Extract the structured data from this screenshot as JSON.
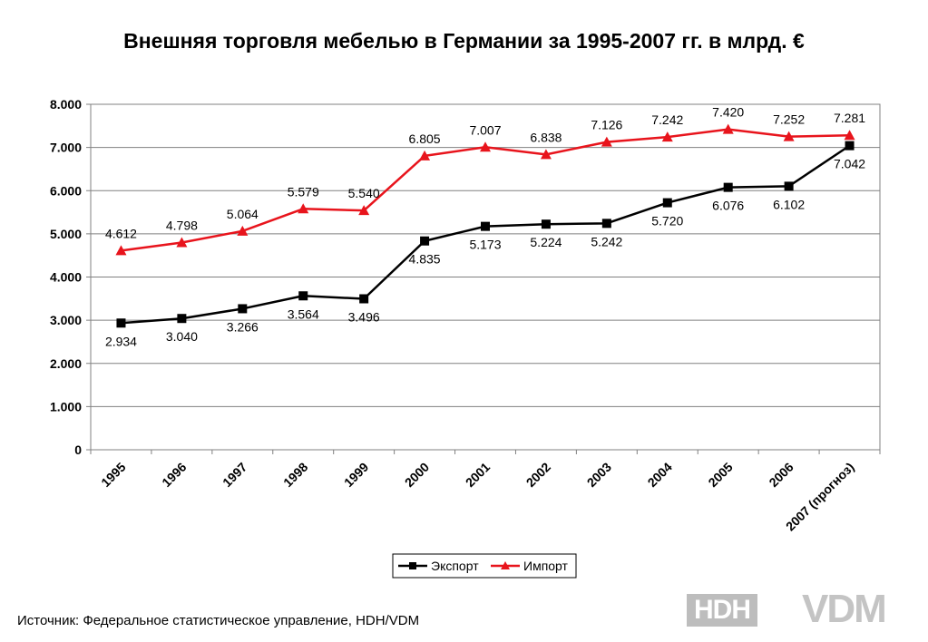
{
  "chart_data": {
    "type": "line",
    "title": "Внешняя торговля мебелью в Германии за 1995-2007 гг. в млрд. €",
    "categories": [
      "1995",
      "1996",
      "1997",
      "1998",
      "1999",
      "2000",
      "2001",
      "2002",
      "2003",
      "2004",
      "2005",
      "2006",
      "2007 (прогноз)"
    ],
    "ylim": [
      0,
      8
    ],
    "yticks": [
      {
        "value": 0,
        "label": "0"
      },
      {
        "value": 1,
        "label": "1.000"
      },
      {
        "value": 2,
        "label": "2.000"
      },
      {
        "value": 3,
        "label": "3.000"
      },
      {
        "value": 4,
        "label": "4.000"
      },
      {
        "value": 5,
        "label": "5.000"
      },
      {
        "value": 6,
        "label": "6.000"
      },
      {
        "value": 7,
        "label": "7.000"
      },
      {
        "value": 8,
        "label": "8.000"
      }
    ],
    "grid": true,
    "legend_position": "bottom",
    "series": [
      {
        "name": "Экспорт",
        "color": "#000000",
        "marker": "square",
        "label_side": "below",
        "values": [
          2.934,
          3.04,
          3.266,
          3.564,
          3.496,
          4.835,
          5.173,
          5.224,
          5.242,
          5.72,
          6.076,
          6.102,
          7.042
        ],
        "labels": [
          "2.934",
          "3.040",
          "3.266",
          "3.564",
          "3.496",
          "4.835",
          "5.173",
          "5.224",
          "5.242",
          "5.720",
          "6.076",
          "6.102",
          "7.042"
        ]
      },
      {
        "name": "Импорт",
        "color": "#e8141c",
        "marker": "triangle",
        "label_side": "above",
        "values": [
          4.612,
          4.798,
          5.064,
          5.579,
          5.54,
          6.805,
          7.007,
          6.838,
          7.126,
          7.242,
          7.42,
          7.252,
          7.281
        ],
        "labels": [
          "4.612",
          "4.798",
          "5.064",
          "5.579",
          "5.540",
          "6.805",
          "7.007",
          "6.838",
          "7.126",
          "7.242",
          "7.420",
          "7.252",
          "7.281"
        ]
      }
    ]
  },
  "source": "Источник: Федеральное статистическое управление, HDH/VDM",
  "logos": {
    "hdh": "HDH",
    "vdm": "VDM"
  }
}
